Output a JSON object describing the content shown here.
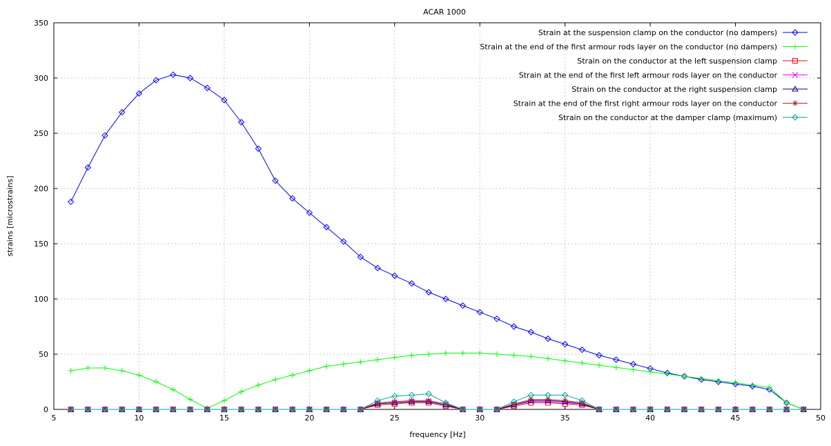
{
  "chart_data": {
    "type": "line",
    "title": "ACAR 1000",
    "xlabel": "frequency [Hz]",
    "ylabel": "strains [microstrains]",
    "xlim": [
      5,
      50
    ],
    "ylim": [
      0,
      350
    ],
    "xticks": [
      5,
      10,
      15,
      20,
      25,
      30,
      35,
      40,
      45,
      50
    ],
    "yticks": [
      0,
      50,
      100,
      150,
      200,
      250,
      300,
      350
    ],
    "grid": true,
    "legend_position": "top-right",
    "x": [
      6,
      7,
      8,
      9,
      10,
      11,
      12,
      13,
      14,
      15,
      16,
      17,
      18,
      19,
      20,
      21,
      22,
      23,
      24,
      25,
      26,
      27,
      28,
      29,
      30,
      31,
      32,
      33,
      34,
      35,
      36,
      37,
      38,
      39,
      40,
      41,
      42,
      43,
      44,
      45,
      46,
      47,
      48,
      49
    ],
    "series": [
      {
        "name": "Strain at the suspension clamp on the conductor (no dampers)",
        "color": "#0000ff",
        "marker": "diamond",
        "values": [
          188,
          219,
          248,
          269,
          286,
          298,
          303,
          300,
          291,
          280,
          260,
          236,
          207,
          191,
          178,
          165,
          152,
          138,
          128,
          121,
          114,
          106,
          100,
          94,
          88,
          82,
          75,
          70,
          64,
          59,
          54,
          49,
          45,
          41,
          37,
          33,
          30,
          27,
          25,
          23,
          21,
          18,
          6,
          0
        ]
      },
      {
        "name": "Strain at the end of the first armour rods layer on the conductor (no dampers)",
        "color": "#00ff00",
        "marker": "plus",
        "values": [
          35,
          37.5,
          37.5,
          35,
          31,
          25,
          18,
          9,
          1,
          8,
          16,
          22,
          27,
          31,
          35,
          39,
          41,
          43,
          45,
          47,
          49,
          50,
          51,
          51,
          51,
          50,
          49,
          48,
          46,
          44,
          42,
          40,
          38,
          36,
          34,
          32,
          30,
          28,
          26,
          24,
          22,
          20,
          6,
          0
        ]
      },
      {
        "name": "Strain on the conductor at the left suspension clamp",
        "color": "#ff0000",
        "marker": "square",
        "values": [
          0,
          0,
          0,
          0,
          0,
          0,
          0,
          0,
          0,
          0,
          0,
          0,
          0,
          0,
          0,
          0,
          0,
          0,
          4,
          5,
          6,
          6,
          3,
          0,
          0,
          0,
          3,
          6,
          6,
          5,
          4,
          0,
          0,
          0,
          0,
          0,
          0,
          0,
          0,
          0,
          0,
          0,
          0,
          0
        ]
      },
      {
        "name": "Strain at the end of the first left armour rods layer on the conductor",
        "color": "#ff00ff",
        "marker": "cross",
        "values": [
          0,
          0,
          0,
          0,
          0,
          0,
          0,
          0,
          0,
          0,
          0,
          0,
          0,
          0,
          0,
          0,
          0,
          0,
          5,
          6,
          7,
          7,
          4,
          0,
          0,
          0,
          4,
          7,
          7,
          6,
          5,
          0,
          0,
          0,
          0,
          0,
          0,
          0,
          0,
          0,
          0,
          0,
          0,
          0
        ]
      },
      {
        "name": "Strain on the conductor at the right suspension clamp",
        "color": "#000080",
        "marker": "triangle",
        "values": [
          0,
          0,
          0,
          0,
          0,
          0,
          0,
          0,
          0,
          0,
          0,
          0,
          0,
          0,
          0,
          0,
          0,
          0,
          5,
          6,
          7,
          7,
          4,
          0,
          0,
          0,
          4,
          8,
          8,
          7,
          5,
          0,
          0,
          0,
          0,
          0,
          0,
          0,
          0,
          0,
          0,
          0,
          0,
          0
        ]
      },
      {
        "name": "Strain at the end of the first right armour rods layer on the conductor",
        "color": "#a52a2a",
        "marker": "star",
        "values": [
          0,
          0,
          0,
          0,
          0,
          0,
          0,
          0,
          0,
          0,
          0,
          0,
          0,
          0,
          0,
          0,
          0,
          0,
          6,
          7,
          8,
          8,
          5,
          0,
          0,
          0,
          5,
          9,
          9,
          8,
          6,
          0,
          0,
          0,
          0,
          0,
          0,
          0,
          0,
          0,
          0,
          0,
          0,
          0
        ]
      },
      {
        "name": "Strain on the conductor at the damper clamp (maximum)",
        "color": "#00a0a0",
        "marker": "diamond",
        "values": [
          0,
          0,
          0,
          0,
          0,
          0,
          0,
          0,
          0,
          0,
          0,
          0,
          0,
          0,
          0,
          0,
          0,
          0,
          8,
          12,
          13,
          14,
          6,
          0,
          0,
          0,
          7,
          13,
          13,
          13,
          8,
          0,
          0,
          0,
          0,
          0,
          0,
          0,
          0,
          0,
          0,
          0,
          0,
          0
        ]
      }
    ]
  }
}
